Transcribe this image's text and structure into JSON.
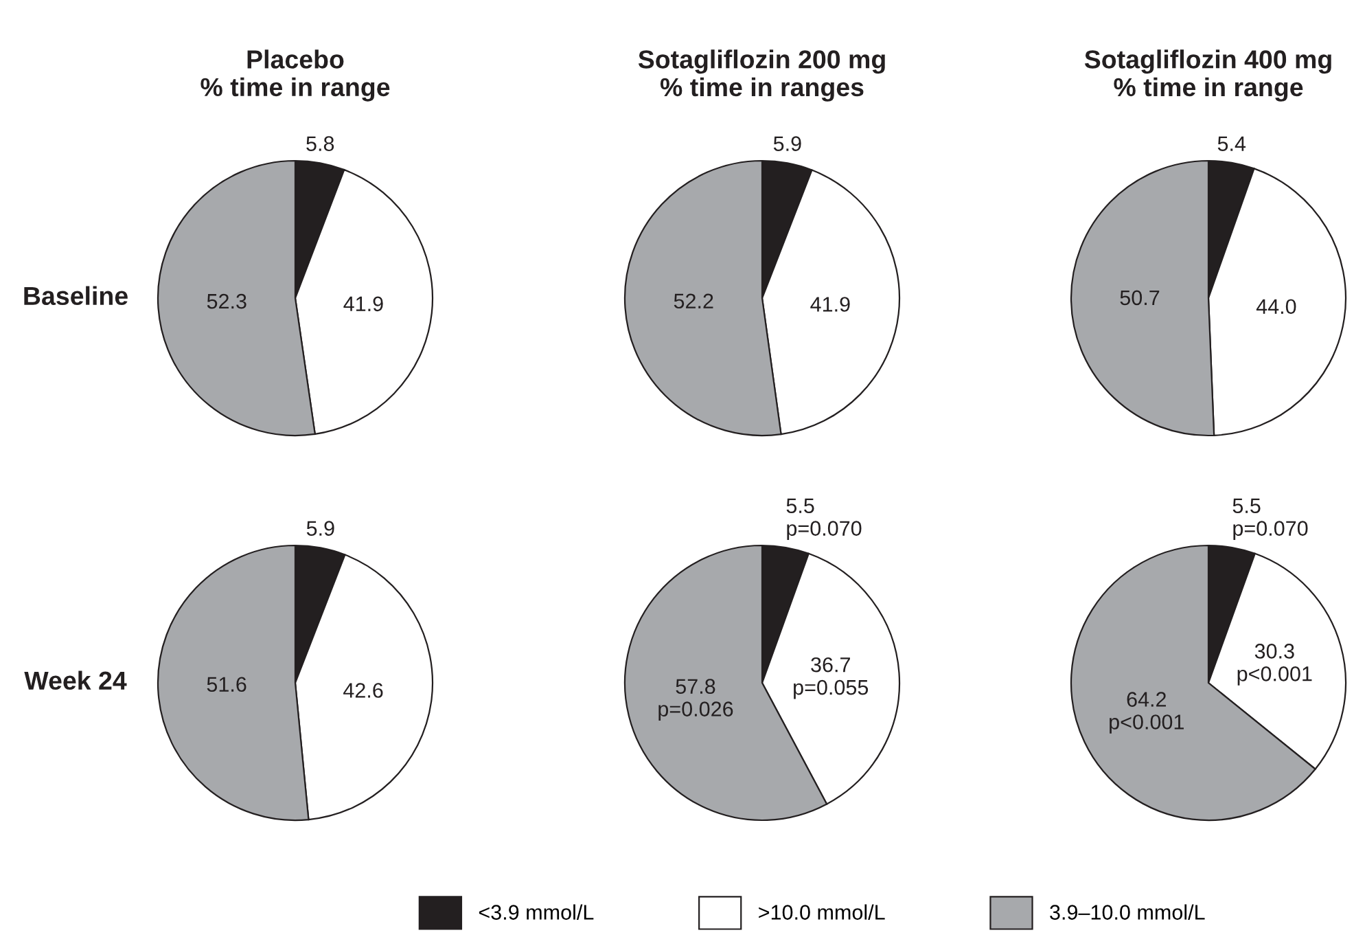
{
  "chart_data": [
    {
      "type": "pie",
      "title": "Placebo\n% time in range",
      "ylabel": "Baseline",
      "categories": [
        "<3.9 mmol/L",
        ">10.0 mmol/L",
        "3.9–10.0 mmol/L"
      ],
      "values": [
        5.8,
        41.9,
        52.3
      ],
      "colors": [
        "#231f20",
        "#ffffff",
        "#a7a9ac"
      ],
      "value_labels": [
        "5.8",
        "41.9",
        "52.3"
      ],
      "legend": "bottom"
    },
    {
      "type": "pie",
      "title": "Sotagliflozin 200 mg\n% time in ranges",
      "categories": [
        null,
        null,
        null
      ],
      "values": [
        5.9,
        41.9,
        52.2
      ],
      "colors": [
        "#231f20",
        "#ffffff",
        "#a7a9ac"
      ],
      "value_labels": [
        "5.9",
        "41.9",
        "52.2"
      ]
    },
    {
      "type": "pie",
      "title": "Sotagliflozin 400 mg\n% time in range",
      "categories": [
        null,
        null,
        null
      ],
      "values": [
        5.4,
        44.0,
        50.7
      ],
      "colors": [
        "#231f20",
        "#ffffff",
        "#a7a9ac"
      ],
      "value_labels": [
        "5.4",
        "44.0",
        "50.7"
      ]
    },
    {
      "type": "pie",
      "ylabel": "Week 24",
      "categories": [
        null,
        null,
        null
      ],
      "values": [
        5.9,
        42.6,
        51.6
      ],
      "colors": [
        "#231f20",
        "#ffffff",
        "#a7a9ac"
      ],
      "value_labels": [
        "5.9",
        "42.6",
        "51.6"
      ]
    },
    {
      "type": "pie",
      "categories": [
        null,
        null,
        null
      ],
      "values": [
        5.5,
        36.7,
        57.8
      ],
      "colors": [
        "#231f20",
        "#ffffff",
        "#a7a9ac"
      ],
      "value_labels": [
        "5.5\np=0.070",
        "36.7\np=0.055",
        "57.8\np=0.026"
      ]
    },
    {
      "type": "pie",
      "categories": [
        null,
        null,
        null
      ],
      "values": [
        5.5,
        30.3,
        64.2
      ],
      "colors": [
        "#231f20",
        "#ffffff",
        "#a7a9ac"
      ],
      "value_labels": [
        "5.5\np=0.070",
        "30.3\np<0.001",
        "64.2\np<0.001"
      ]
    }
  ]
}
